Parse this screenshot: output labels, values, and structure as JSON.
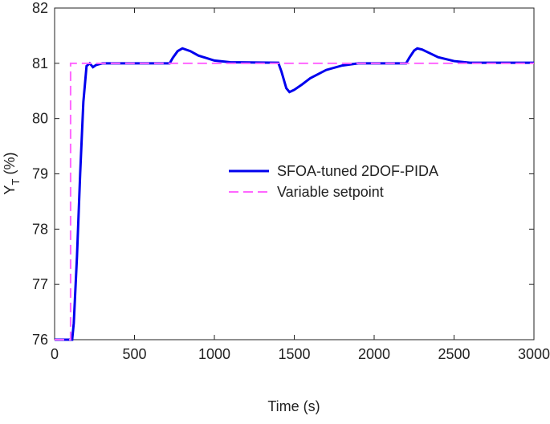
{
  "chart_data": {
    "type": "line",
    "x_label": "Time (s)",
    "y_label": [
      "Y",
      "T",
      " (%)"
    ],
    "xlim": [
      0,
      3000
    ],
    "xticks": [
      0,
      500,
      1000,
      1500,
      2000,
      2500,
      3000
    ],
    "ylim": [
      76,
      82
    ],
    "yticks": [
      76,
      77,
      78,
      79,
      80,
      81,
      82
    ],
    "legend": "center",
    "series": [
      {
        "name": "SFOA-tuned 2DOF-PIDA",
        "color": "#0000ee",
        "dash": "solid",
        "x": [
          0,
          110,
          120,
          140,
          160,
          180,
          200,
          220,
          240,
          260,
          300,
          720,
          740,
          770,
          800,
          850,
          900,
          1000,
          1100,
          1400,
          1420,
          1450,
          1470,
          1500,
          1550,
          1600,
          1700,
          1800,
          1900,
          2200,
          2220,
          2250,
          2270,
          2300,
          2350,
          2400,
          2500,
          2600,
          3000
        ],
        "values": [
          76,
          76,
          76.3,
          77.5,
          79,
          80.3,
          80.95,
          81,
          80.93,
          80.97,
          81,
          81,
          81.1,
          81.22,
          81.27,
          81.22,
          81.14,
          81.05,
          81.02,
          81.01,
          80.85,
          80.55,
          80.48,
          80.52,
          80.62,
          80.73,
          80.88,
          80.96,
          81,
          81,
          81.1,
          81.23,
          81.27,
          81.25,
          81.18,
          81.11,
          81.04,
          81.01,
          81.01
        ]
      },
      {
        "name": "Variable setpoint",
        "color": "#ff66ff",
        "dash": "dashed",
        "x": [
          0,
          100,
          100,
          3000
        ],
        "values": [
          76,
          76,
          81,
          81
        ]
      }
    ]
  }
}
